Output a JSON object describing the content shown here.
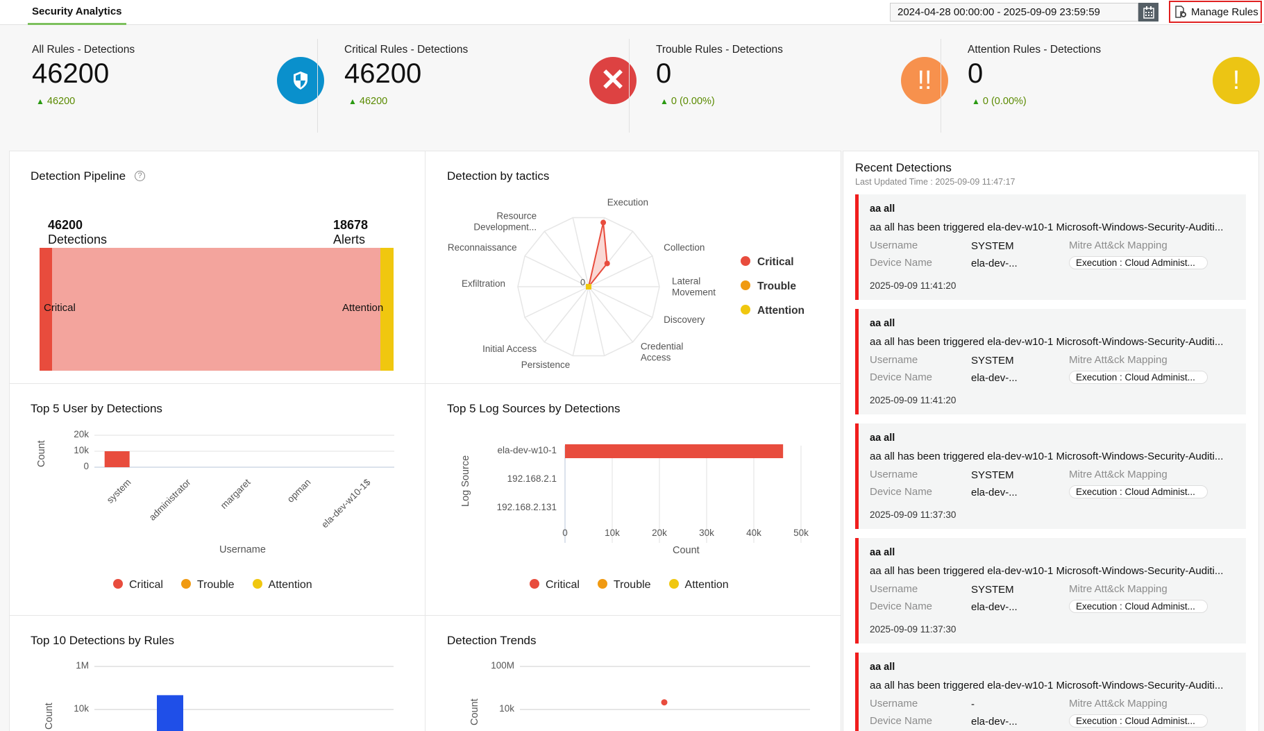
{
  "header": {
    "tab": "Security Analytics",
    "date_range": "2024-04-28 00:00:00 - 2025-09-09 23:59:59",
    "manage_rules": "Manage Rules"
  },
  "colors": {
    "critical": "#e84c3d",
    "trouble": "#f09a12",
    "attention": "#f0c70f",
    "all": "#0a90cc",
    "trouble_icon": "#f7914d",
    "accent": "#7cc05d"
  },
  "stats": [
    {
      "label": "All Rules - Detections",
      "value": "46200",
      "delta": "46200",
      "icon": "shield-icon",
      "color": "#0a90cc"
    },
    {
      "label": "Critical Rules - Detections",
      "value": "46200",
      "delta": "46200",
      "icon": "close-icon",
      "color": "#dd4242"
    },
    {
      "label": "Trouble Rules - Detections",
      "value": "0",
      "delta": "0 (0.00%)",
      "icon": "double-exclamation-icon",
      "color": "#f7914d"
    },
    {
      "label": "Attention Rules - Detections",
      "value": "0",
      "delta": "0 (0.00%)",
      "icon": "exclamation-icon",
      "color": "#ecc514"
    }
  ],
  "pipeline": {
    "title": "Detection Pipeline",
    "detections": "46200",
    "detections_label": "Detections",
    "alerts": "18678",
    "alerts_label": "Alerts",
    "left_node": "Critical",
    "right_node": "Attention"
  },
  "legend": [
    "Critical",
    "Trouble",
    "Attention"
  ],
  "chart_data": [
    {
      "type": "radar",
      "title": "Detection by tactics",
      "axes": [
        "Execution",
        "",
        "Collection",
        "Lateral Movement",
        "Discovery",
        "Credential Access",
        "",
        "Persistence",
        "Initial Access",
        "",
        "Exfiltration",
        "Reconnaissance",
        "Resource Development...",
        ""
      ],
      "center_label": "0",
      "rmax": 100,
      "series": [
        {
          "name": "Critical",
          "values": [
            93,
            42,
            0,
            0,
            0,
            0,
            0,
            0,
            0,
            0,
            0,
            0,
            0,
            0
          ]
        },
        {
          "name": "Attention",
          "values": [
            0,
            0,
            0,
            0,
            0,
            0,
            0,
            0,
            0,
            0,
            0,
            0,
            0,
            0
          ]
        }
      ]
    },
    {
      "type": "bar",
      "title": "Top 5 User by Detections",
      "categories": [
        "system",
        "administrator",
        "margaret",
        "opman",
        "ela-dev-w10-1$"
      ],
      "series": [
        {
          "name": "Critical",
          "values": [
            10000,
            0,
            0,
            0,
            0
          ]
        }
      ],
      "xlabel": "Username",
      "ylabel": "Count",
      "ylim": [
        0,
        20000
      ],
      "yticks": [
        "0",
        "10k",
        "20k"
      ]
    },
    {
      "type": "bar",
      "orientation": "horizontal",
      "title": "Top 5 Log Sources by Detections",
      "categories": [
        "ela-dev-w10-1",
        "192.168.2.1",
        "192.168.2.131"
      ],
      "series": [
        {
          "name": "Critical",
          "values": [
            46200,
            0,
            0
          ]
        }
      ],
      "xlabel": "Count",
      "ylabel": "Log Source",
      "xlim": [
        0,
        50000
      ],
      "xticks": [
        "0",
        "10k",
        "20k",
        "30k",
        "40k",
        "50k"
      ]
    },
    {
      "type": "bar",
      "title": "Top 10 Detections by Rules",
      "scale": "log",
      "yticks": [
        "1M",
        "10k"
      ],
      "ylabel": "Count",
      "values": [
        46200
      ],
      "color": "#1f4fe8"
    },
    {
      "type": "scatter",
      "title": "Detection Trends",
      "scale": "log",
      "yticks": [
        "100M",
        "10k"
      ],
      "ylabel": "Count",
      "values": [
        46200
      ]
    }
  ],
  "recent": {
    "title": "Recent Detections",
    "updated": "Last Updated Time : 2025-09-09 11:47:17",
    "username_label": "Username",
    "device_label": "Device Name",
    "mitre_label": "Mitre Att&ck Mapping",
    "items": [
      {
        "title": "aa all",
        "message": "aa all has been triggered ela-dev-w10-1 Microsoft-Windows-Security-Auditi...",
        "username": "SYSTEM",
        "device": "ela-dev-...",
        "mitre": "Execution : Cloud Administ...",
        "time": "2025-09-09 11:41:20"
      },
      {
        "title": "aa all",
        "message": "aa all has been triggered ela-dev-w10-1 Microsoft-Windows-Security-Auditi...",
        "username": "SYSTEM",
        "device": "ela-dev-...",
        "mitre": "Execution : Cloud Administ...",
        "time": "2025-09-09 11:41:20"
      },
      {
        "title": "aa all",
        "message": "aa all has been triggered ela-dev-w10-1 Microsoft-Windows-Security-Auditi...",
        "username": "SYSTEM",
        "device": "ela-dev-...",
        "mitre": "Execution : Cloud Administ...",
        "time": "2025-09-09 11:37:30"
      },
      {
        "title": "aa all",
        "message": "aa all has been triggered ela-dev-w10-1 Microsoft-Windows-Security-Auditi...",
        "username": "SYSTEM",
        "device": "ela-dev-...",
        "mitre": "Execution : Cloud Administ...",
        "time": "2025-09-09 11:37:30"
      },
      {
        "title": "aa all",
        "message": "aa all has been triggered ela-dev-w10-1 Microsoft-Windows-Security-Auditi...",
        "username": "-",
        "device": "ela-dev-...",
        "mitre": "Execution : Cloud Administ...",
        "time": ""
      }
    ]
  }
}
